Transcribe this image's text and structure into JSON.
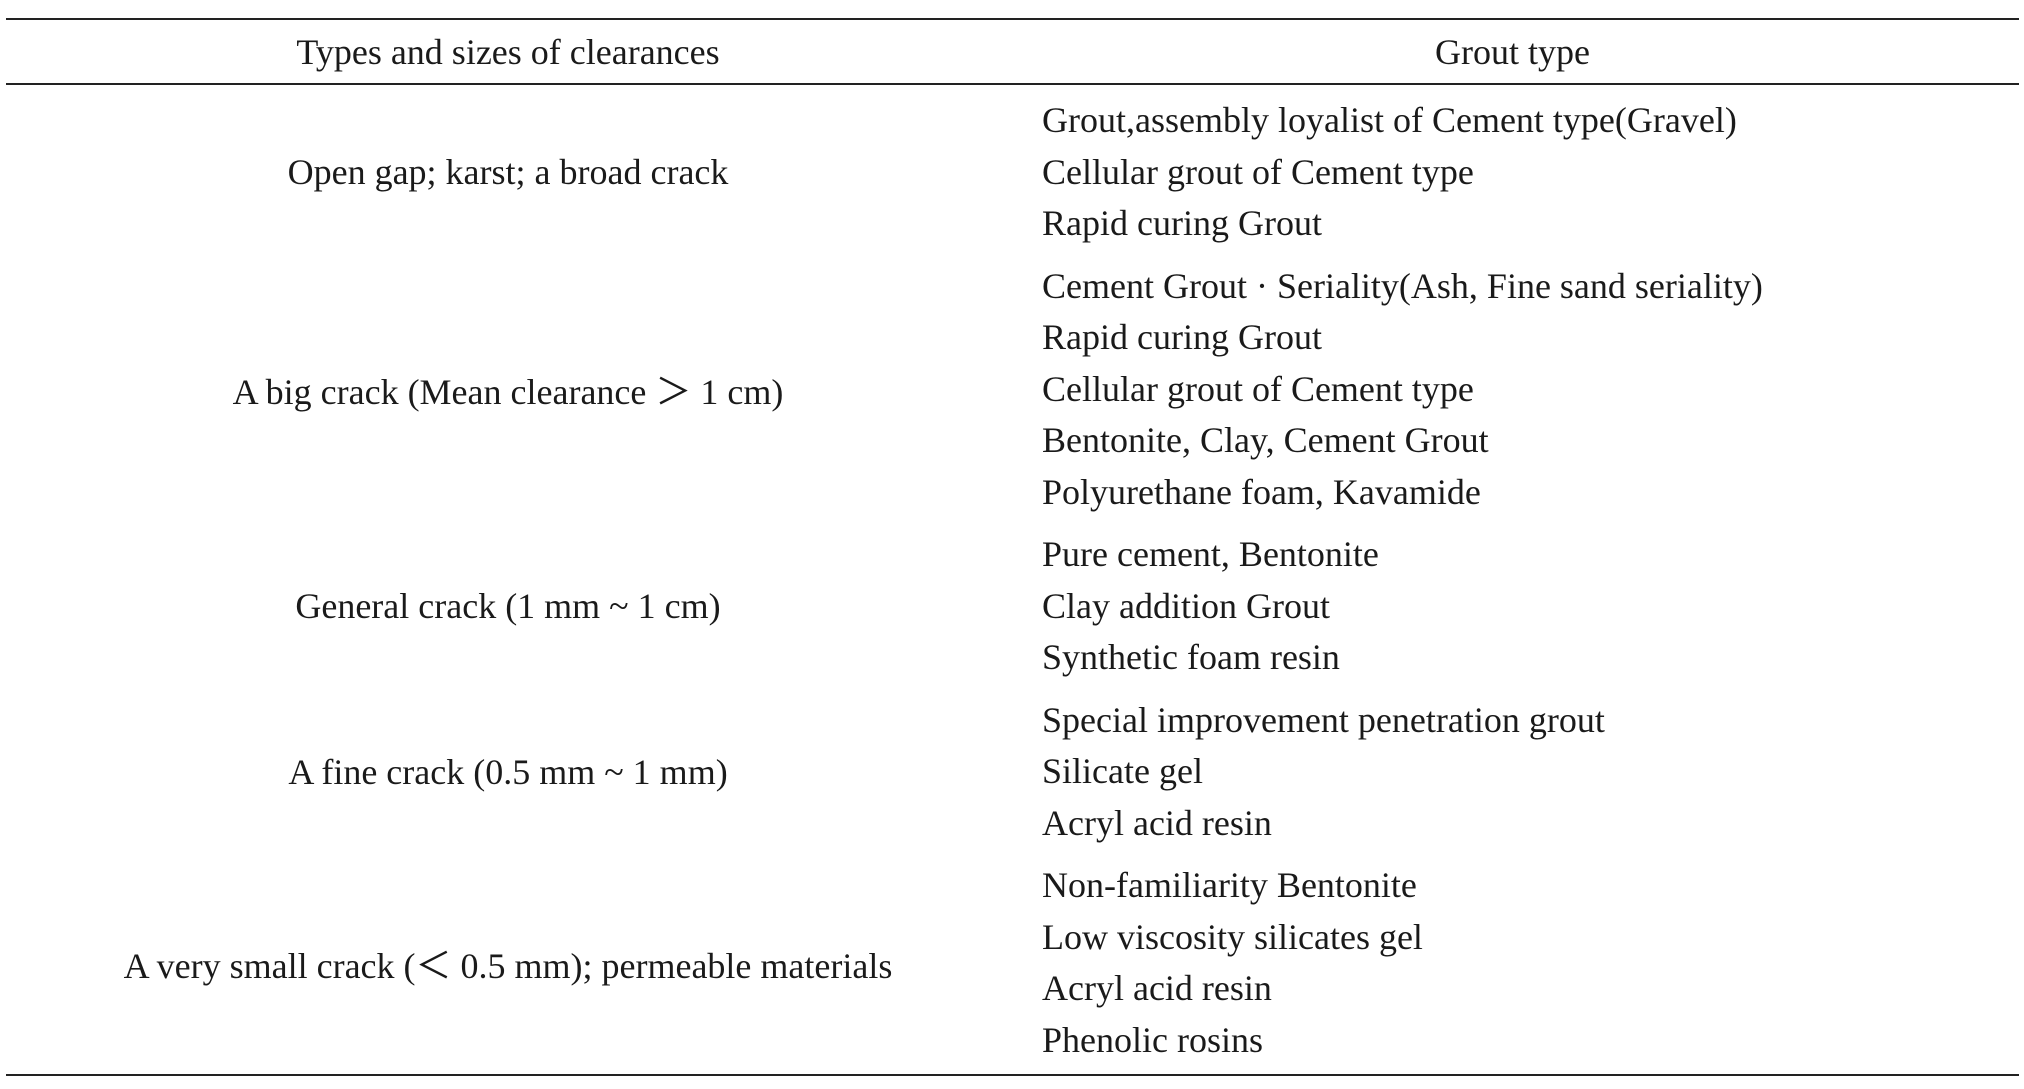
{
  "table": {
    "header": {
      "clearance": "Types and sizes of clearances",
      "grout": "Grout type"
    },
    "rows": [
      {
        "clearance": "Open gap; karst; a broad crack",
        "grouts": [
          "Grout,assembly loyalist of Cement type(Gravel)",
          "Cellular grout of Cement type",
          "Rapid curing Grout"
        ]
      },
      {
        "clearance": "A big crack (Mean clearance ＞ 1 cm)",
        "grouts": [
          "Cement Grout · Seriality(Ash, Fine sand seriality)",
          "Rapid curing Grout",
          "Cellular grout of Cement type",
          "Bentonite, Clay, Cement Grout",
          "Polyurethane foam, Kavamide"
        ]
      },
      {
        "clearance": "General crack (1 mm ~ 1 cm)",
        "grouts": [
          "Pure cement, Bentonite",
          "Clay addition Grout",
          "Synthetic foam resin"
        ]
      },
      {
        "clearance": "A fine crack (0.5 mm ~ 1 mm)",
        "grouts": [
          "Special improvement penetration grout",
          "Silicate gel",
          "Acryl acid resin"
        ]
      },
      {
        "clearance": "A very small crack (＜ 0.5 mm); permeable materials",
        "grouts": [
          "Non-familiarity Bentonite",
          "Low viscosity silicates gel",
          "Acryl acid resin",
          "Phenolic rosins"
        ]
      }
    ]
  }
}
